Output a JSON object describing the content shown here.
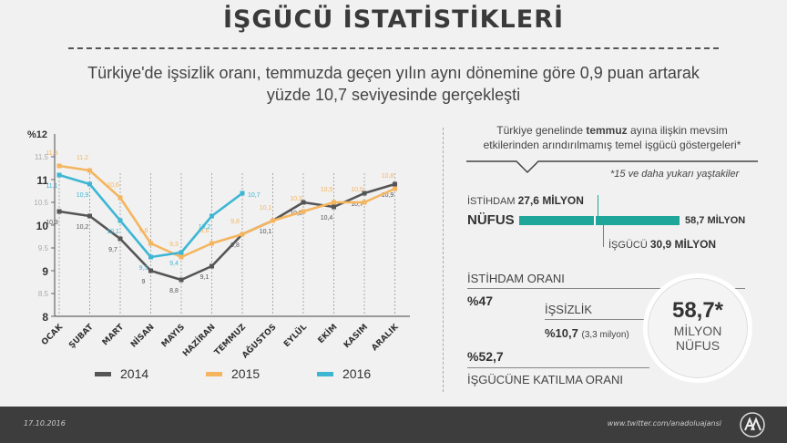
{
  "title": "İŞGÜCÜ İSTATİSTİKLERİ",
  "subtitle_line1": "Türkiye'de işsizlik oranı, temmuzda geçen yılın aynı dönemine göre 0,9 puan artarak",
  "subtitle_line2": "yüzde 10,7 seviyesinde gerçekleşti",
  "colors": {
    "s2014": "#555555",
    "s2015": "#f5b55f",
    "s2016": "#3db6d4",
    "teal": "#1fa69a"
  },
  "chart_data": {
    "type": "line",
    "y_unit_label": "%12",
    "ylim": [
      8,
      12
    ],
    "y_ticks": [
      {
        "v": 8,
        "label": "8",
        "minor": false
      },
      {
        "v": 8.5,
        "label": "8.5",
        "minor": true
      },
      {
        "v": 9,
        "label": "9",
        "minor": false
      },
      {
        "v": 9.5,
        "label": "9.5",
        "minor": true
      },
      {
        "v": 10,
        "label": "10",
        "minor": false
      },
      {
        "v": 10.5,
        "label": "10.5",
        "minor": true
      },
      {
        "v": 11,
        "label": "11",
        "minor": false
      },
      {
        "v": 11.5,
        "label": "11.5",
        "minor": true
      }
    ],
    "categories": [
      "OCAK",
      "ŞUBAT",
      "MART",
      "NİSAN",
      "MAYIS",
      "HAZİRAN",
      "TEMMUZ",
      "AĞUSTOS",
      "EYLÜL",
      "EKİM",
      "KASIM",
      "ARALIK"
    ],
    "series": [
      {
        "name": "2014",
        "values": [
          10.3,
          10.2,
          9.7,
          9.0,
          8.8,
          9.1,
          9.8,
          10.1,
          10.5,
          10.4,
          10.7,
          10.9
        ],
        "labels": [
          "10,3",
          "10,2",
          "9,7",
          "9",
          "8,8",
          "9,1",
          "9,8",
          "10,1",
          "10,5",
          "10,4",
          "10,7",
          "10,9"
        ]
      },
      {
        "name": "2015",
        "values": [
          11.3,
          11.2,
          10.6,
          9.6,
          9.3,
          9.6,
          9.8,
          10.1,
          10.3,
          10.5,
          10.5,
          10.8
        ],
        "labels": [
          "11,3",
          "11,2",
          "10,6",
          "9,6",
          "9,3",
          "9,6",
          "9,8",
          "10,1",
          "10,3",
          "10,5",
          "10,5",
          "10,8"
        ]
      },
      {
        "name": "2016",
        "values": [
          11.1,
          10.9,
          10.1,
          9.3,
          9.4,
          10.2,
          10.7,
          null,
          null,
          null,
          null,
          null
        ],
        "labels": [
          "11,1",
          "10,9",
          "10,1",
          "9,3",
          "9,4",
          "10,2",
          "10,7",
          null,
          null,
          null,
          null,
          null
        ]
      }
    ]
  },
  "legend": [
    "2014",
    "2015",
    "2016"
  ],
  "right": {
    "intro_pre": "Türkiye genelinde ",
    "intro_bold": "temmuz",
    "intro_post": " ayına ilişkin mevsim",
    "intro_line2": "etkilerinden arındırılmamış temel işgücü göstergeleri*",
    "footnote": "*15 ve daha yukarı yaştakiler",
    "istihdam_label": "İSTİHDAM",
    "istihdam_value": "27,6 MİLYON",
    "nufus_label": "NÜFUS",
    "nufus_value": "58,7 MİLYON",
    "isgucu_label": "İŞGÜCÜ",
    "isgucu_value": "30,9 MİLYON",
    "istihdam_orani_label": "İSTİHDAM ORANI",
    "istihdam_orani_value": "%47",
    "issizlik_label": "İŞSİZLİK",
    "issizlik_value": "%10,7",
    "issizlik_note": "(3,3 milyon)",
    "katilim_value": "%52,7",
    "katilim_label": "İŞGÜCÜNE KATILMA ORANI",
    "circle_value": "58,7*",
    "circle_line1": "MİLYON",
    "circle_line2": "NÜFUS"
  },
  "footer": {
    "date": "17.10.2016",
    "source": "www.twitter.com/anadoluajansi"
  }
}
